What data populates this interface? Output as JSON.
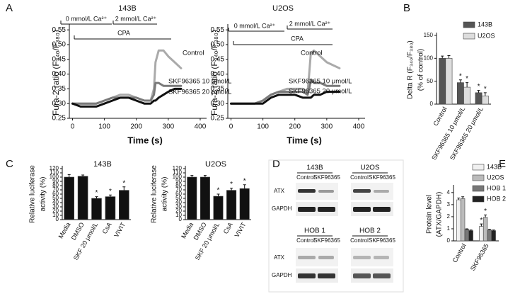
{
  "panel_labels": [
    "A",
    "B",
    "C",
    "D",
    "E"
  ],
  "chart_data": [
    {
      "type": "line",
      "title": "143B",
      "xlabel": "Time (s)",
      "ylabel": [
        "Fura-2 ratio (F₃₄₀/F₃₈₀)"
      ],
      "annotations": [
        "0 mmol/L Ca²⁺",
        "2 mmol/L Ca²⁺",
        "CPA"
      ],
      "x": [
        0,
        25,
        50,
        75,
        100,
        125,
        150,
        175,
        200,
        225,
        245,
        255,
        260,
        270,
        285,
        300,
        320,
        340
      ],
      "series": [
        {
          "name": "Control",
          "color": "#aaaaaa",
          "values": [
            0.3,
            0.3,
            0.3,
            0.3,
            0.31,
            0.32,
            0.33,
            0.33,
            0.32,
            0.31,
            0.31,
            0.35,
            0.44,
            0.48,
            0.48,
            0.46,
            0.44,
            0.42
          ]
        },
        {
          "name": "SKF96365 10 μmol/L",
          "color": "#7a7a7a",
          "values": [
            0.3,
            0.3,
            0.3,
            0.3,
            0.31,
            0.32,
            0.32,
            0.32,
            0.32,
            0.31,
            0.31,
            0.33,
            0.37,
            0.37,
            0.36,
            0.36,
            0.36,
            0.36
          ]
        },
        {
          "name": "SKF96365 20 μmol/L",
          "color": "#111111",
          "values": [
            0.3,
            0.29,
            0.29,
            0.29,
            0.3,
            0.31,
            0.32,
            0.32,
            0.31,
            0.3,
            0.3,
            0.31,
            0.31,
            0.32,
            0.33,
            0.34,
            0.35,
            0.35
          ]
        }
      ],
      "xlim": [
        -10,
        420
      ],
      "xticks": [
        0,
        100,
        200,
        300,
        400
      ],
      "ylim": [
        0.25,
        0.56
      ],
      "yticks": [
        0.25,
        {
          "value": 0.3,
          "label": "0.30"
        },
        0.35,
        {
          "value": 0.4,
          "label": "0.40"
        },
        0.45,
        {
          "value": 0.5,
          "label": "0.50"
        },
        0.55
      ]
    },
    {
      "type": "line",
      "title": "U2OS",
      "xlabel": "Time (s)",
      "ylabel": [
        "Fura-2 ratio (F₃₄₀/F₃₈₀)"
      ],
      "annotations": [
        "0 mmol/L Ca²⁺",
        "2 mmol/L Ca²⁺",
        "CPA"
      ],
      "x": [
        0,
        25,
        50,
        75,
        100,
        125,
        150,
        175,
        200,
        225,
        240,
        245,
        250,
        260,
        280,
        300,
        320,
        340
      ],
      "series": [
        {
          "name": "Control",
          "color": "#aaaaaa",
          "values": [
            0.3,
            0.3,
            0.3,
            0.3,
            0.31,
            0.33,
            0.34,
            0.35,
            0.35,
            0.35,
            0.34,
            0.4,
            0.47,
            0.48,
            0.46,
            0.44,
            0.43,
            0.42
          ]
        },
        {
          "name": "SKF96365 10 μmol/L",
          "color": "#7a7a7a",
          "values": [
            0.3,
            0.3,
            0.3,
            0.3,
            0.31,
            0.33,
            0.34,
            0.34,
            0.34,
            0.34,
            0.33,
            0.35,
            0.38,
            0.37,
            0.37,
            0.36,
            0.36,
            0.36
          ]
        },
        {
          "name": "SKF96365 20 μmol/L",
          "color": "#111111",
          "values": [
            0.3,
            0.3,
            0.3,
            0.3,
            0.3,
            0.32,
            0.33,
            0.33,
            0.33,
            0.32,
            0.32,
            0.32,
            0.32,
            0.33,
            0.33,
            0.34,
            0.34,
            0.34
          ]
        }
      ],
      "xlim": [
        -10,
        420
      ],
      "xticks": [
        0,
        100,
        200,
        300,
        400
      ],
      "ylim": [
        0.25,
        0.56
      ],
      "yticks": [
        0.25,
        {
          "value": 0.3,
          "label": "0.30"
        },
        0.35,
        {
          "value": 0.4,
          "label": "0.40"
        },
        0.45,
        {
          "value": 0.5,
          "label": "0.50"
        },
        0.55
      ]
    },
    {
      "type": "bar",
      "ylabel": [
        "Delta R (F₃₄₀/F₃₈₀)",
        "(% of control)"
      ],
      "legend": true,
      "categories": [
        "Control",
        "SKF96365 10 μmol/L",
        "SKF96365 20 μmol/L"
      ],
      "series": [
        {
          "name": "143B",
          "color": "#555555",
          "values": [
            100,
            47,
            25
          ],
          "errors": [
            5,
            6,
            5
          ],
          "sig": [
            null,
            "*",
            "*"
          ]
        },
        {
          "name": "U2OS",
          "color": "#dddddd",
          "values": [
            100,
            37,
            18
          ],
          "errors": [
            6,
            10,
            7
          ],
          "sig": [
            null,
            "*",
            "*"
          ]
        }
      ],
      "ylim": [
        0,
        150
      ],
      "yticks": [
        0,
        50,
        100,
        150
      ]
    },
    {
      "type": "bar",
      "title": "143B",
      "ylabel": [
        "Relative luciferase",
        "activity (%)"
      ],
      "categories": [
        "Media",
        "DMSO",
        "SKF 20 μmol/L",
        "CsA",
        "VIVIT"
      ],
      "values": [
        100,
        102,
        50,
        54,
        69
      ],
      "errors": [
        6,
        3,
        4,
        4,
        8
      ],
      "sig": [
        null,
        null,
        "*",
        "*",
        "*"
      ],
      "color": "#111111",
      "ylim": [
        0,
        120
      ],
      "yticks": [
        0,
        10,
        20,
        30,
        40,
        50,
        60,
        70,
        80,
        90,
        100,
        110,
        120
      ]
    },
    {
      "type": "bar",
      "title": "U2OS",
      "ylabel": [
        "Relative luciferase",
        "activity (%)"
      ],
      "categories": [
        "Media",
        "DMSO",
        "SKF 20 μmol/L",
        "CsA",
        "VIVIT"
      ],
      "values": [
        100,
        100,
        55,
        69,
        73
      ],
      "errors": [
        4,
        4,
        5,
        5,
        9
      ],
      "sig": [
        null,
        null,
        "*",
        "*",
        "*"
      ],
      "color": "#111111",
      "ylim": [
        0,
        120
      ],
      "yticks": [
        0,
        10,
        20,
        30,
        40,
        50,
        60,
        70,
        80,
        90,
        100,
        110,
        120
      ]
    },
    {
      "type": "bar",
      "ylabel": [
        "Protein level",
        "(ATX/GAPDH)"
      ],
      "legend": true,
      "categories": [
        "Control",
        "SKF96365"
      ],
      "series": [
        {
          "name": "143B",
          "color": "#f0f0f0",
          "values": [
            3.4,
            1.2
          ],
          "errors": [
            0.15,
            0.2
          ],
          "sig": [
            null,
            "*"
          ]
        },
        {
          "name": "U2OS",
          "color": "#bbbbbb",
          "values": [
            3.5,
            1.95
          ],
          "errors": [
            0.15,
            0.2
          ],
          "sig": [
            null,
            "*"
          ]
        },
        {
          "name": "HOB 1",
          "color": "#777777",
          "values": [
            0.95,
            0.9
          ],
          "errors": [
            0.05,
            0.05
          ],
          "sig": [
            null,
            null
          ]
        },
        {
          "name": "HOB 2",
          "color": "#222222",
          "values": [
            0.85,
            0.85
          ],
          "errors": [
            0.05,
            0.05
          ],
          "sig": [
            null,
            null
          ]
        }
      ],
      "ylim": [
        0,
        4.4
      ],
      "yticks": [
        0,
        1,
        2,
        3,
        4
      ]
    }
  ],
  "blot": {
    "top": {
      "groups": [
        "143B",
        "U2OS"
      ],
      "lanes": [
        "Control",
        "SKF96365",
        "Control",
        "SKF96365"
      ],
      "rows": [
        "ATX",
        "GAPDH"
      ]
    },
    "bottom": {
      "groups": [
        "HOB 1",
        "HOB 2"
      ],
      "lanes": [
        "Control",
        "SKF96365",
        "Control",
        "SKF96365"
      ],
      "rows": [
        "ATX",
        "GAPDH"
      ]
    }
  }
}
